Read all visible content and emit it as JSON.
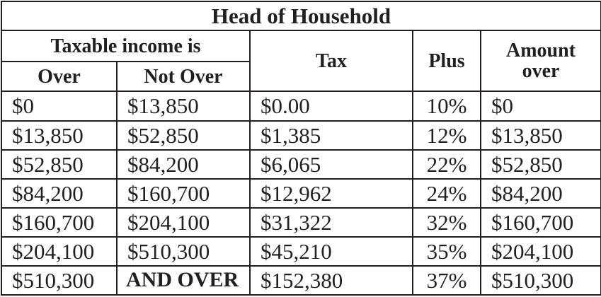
{
  "title": "Head of Household",
  "headers": {
    "taxable_income": "Taxable income is",
    "over": "Over",
    "not_over": "Not Over",
    "tax": "Tax",
    "plus": "Plus",
    "amount_over_line1": "Amount",
    "amount_over_line2": "over"
  },
  "rows": [
    {
      "over": "$0",
      "not_over": "$13,850",
      "tax": "$0.00",
      "plus": "10%",
      "amount_over": "$0"
    },
    {
      "over": "$13,850",
      "not_over": "$52,850",
      "tax": "$1,385",
      "plus": "12%",
      "amount_over": "$13,850"
    },
    {
      "over": "$52,850",
      "not_over": "$84,200",
      "tax": "$6,065",
      "plus": "22%",
      "amount_over": "$52,850"
    },
    {
      "over": "$84,200",
      "not_over": "$160,700",
      "tax": "$12,962",
      "plus": "24%",
      "amount_over": "$84,200"
    },
    {
      "over": "$160,700",
      "not_over": "$204,100",
      "tax": "$31,322",
      "plus": "32%",
      "amount_over": "$160,700"
    },
    {
      "over": "$204,100",
      "not_over": "$510,300",
      "tax": "$45,210",
      "plus": "35%",
      "amount_over": "$204,100"
    },
    {
      "over": "$510,300",
      "not_over": "AND OVER",
      "tax": "$152,380",
      "plus": "37%",
      "amount_over": "$510,300"
    }
  ]
}
